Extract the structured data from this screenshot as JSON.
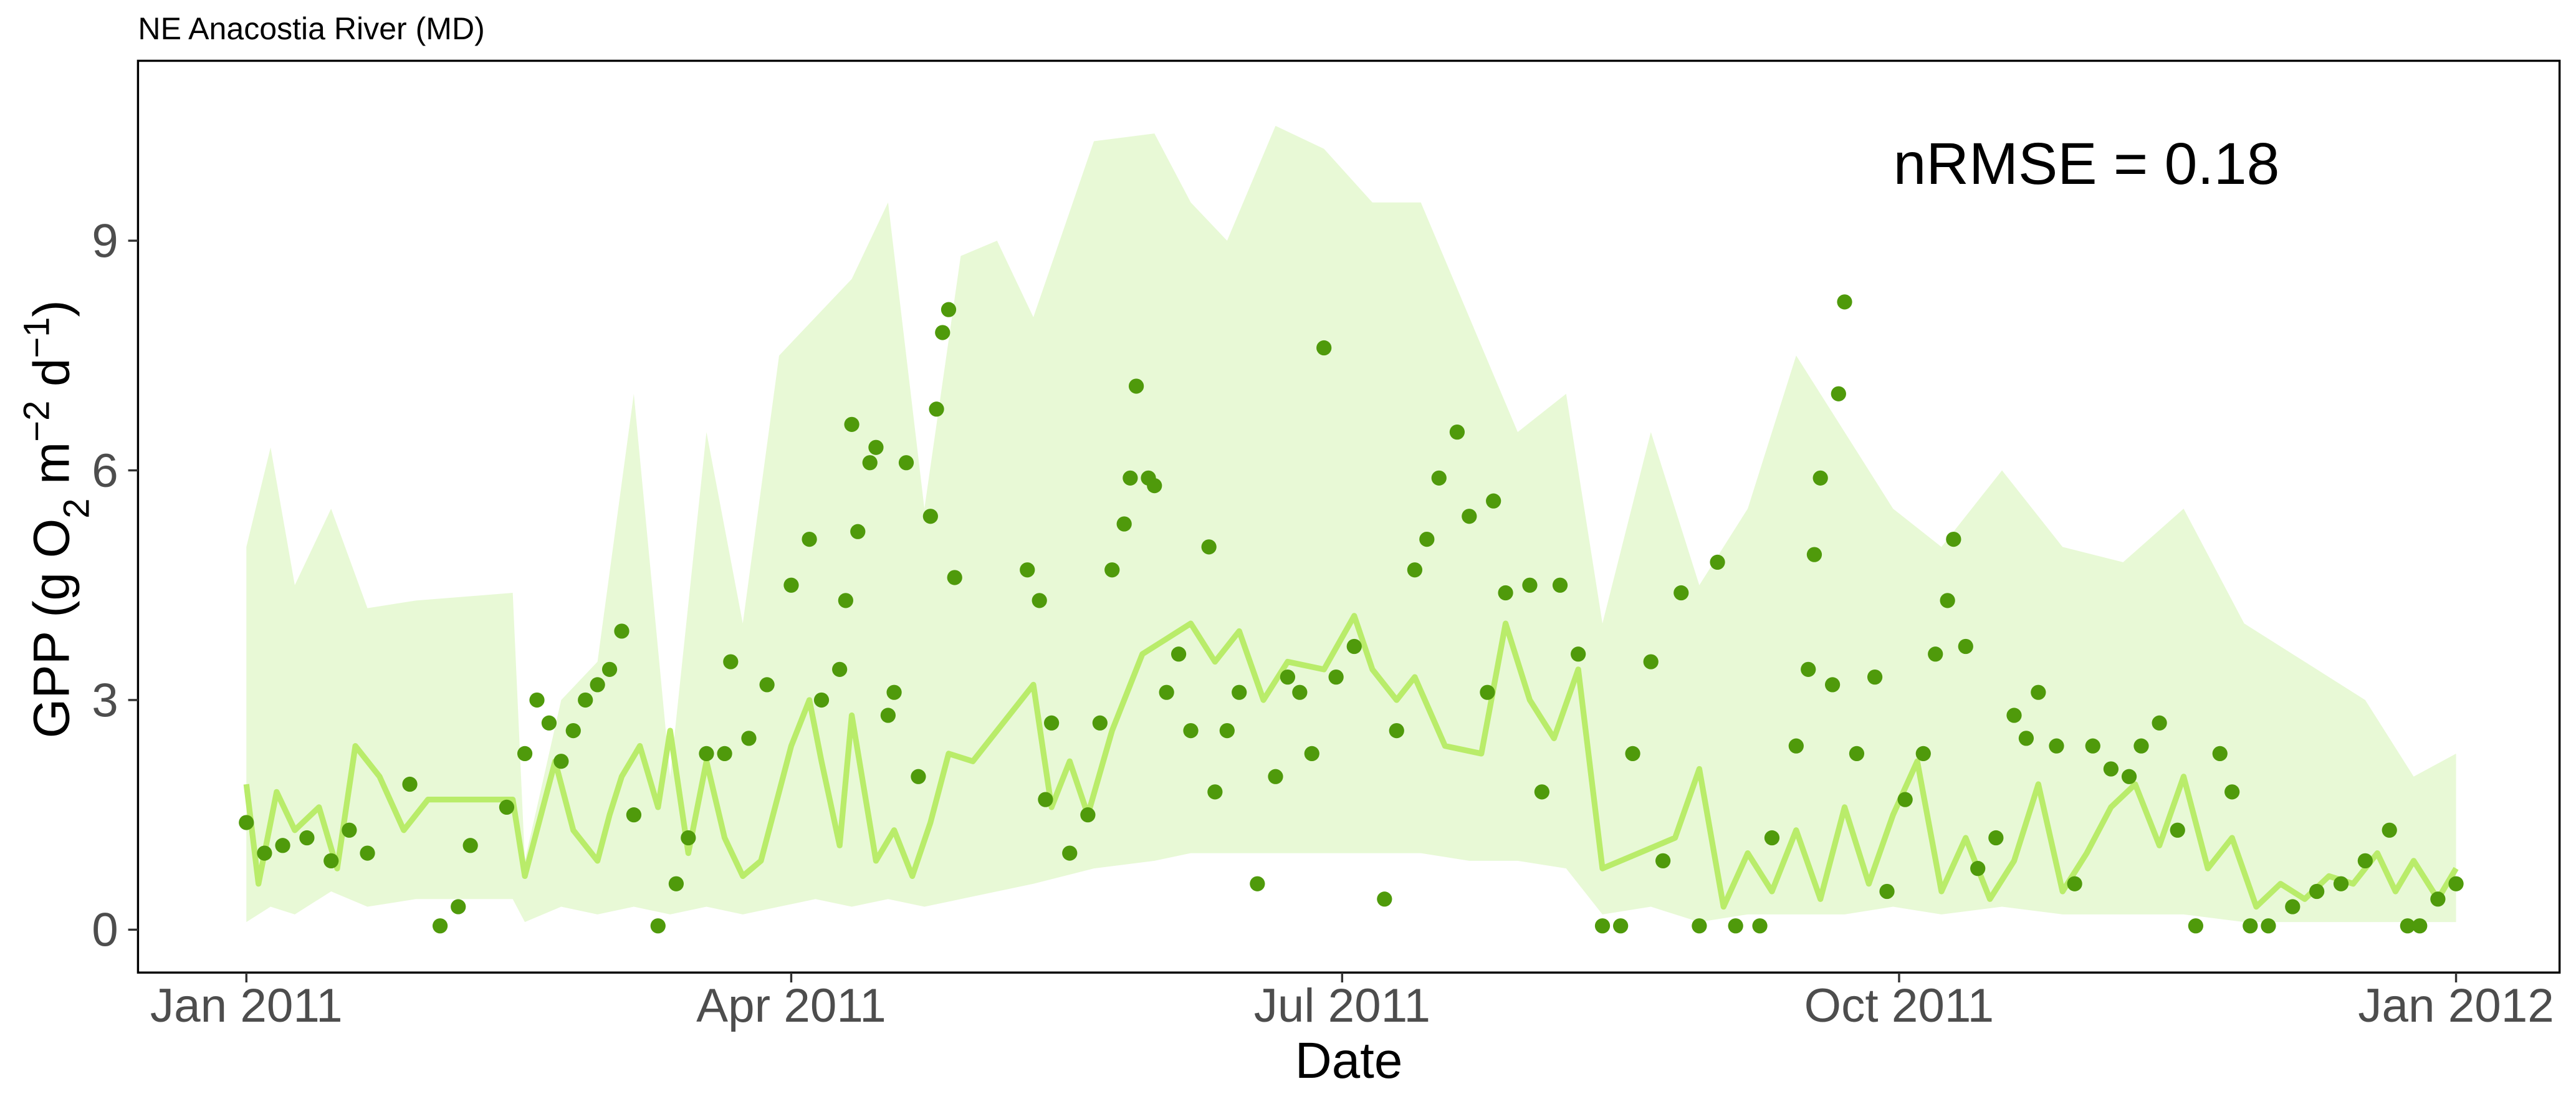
{
  "chart_data": {
    "type": "line",
    "title": "NE Anacostia River (MD)",
    "x_label": "Date",
    "y_label": [
      "GPP (g  O",
      "2",
      " m",
      "−2",
      " d",
      "−1",
      ")"
    ],
    "annotation": "nRMSE =  0.18",
    "xlim": [
      -17.9,
      382.1
    ],
    "xticks": [
      {
        "value": 0,
        "label": "Jan 2011"
      },
      {
        "value": 90,
        "label": "Apr 2011"
      },
      {
        "value": 181,
        "label": "Jul 2011"
      },
      {
        "value": 273,
        "label": "Oct 2011"
      },
      {
        "value": 365,
        "label": "Jan 2012"
      }
    ],
    "ylim": [
      -0.56,
      11.35
    ],
    "yticks": [
      0,
      3,
      6,
      9
    ],
    "grid": false,
    "series": [
      {
        "type": "band",
        "color": "#e8f9d6",
        "x": [
          0,
          4,
          8,
          14,
          20,
          28,
          44,
          46,
          52,
          58,
          64,
          70,
          76,
          82,
          88,
          94,
          100,
          106,
          112,
          118,
          124,
          130,
          140,
          150,
          156,
          162,
          170,
          178,
          186,
          194,
          202,
          210,
          218,
          224,
          232,
          240,
          248,
          256,
          264,
          272,
          280,
          290,
          300,
          310,
          320,
          330,
          340,
          350,
          358,
          365
        ],
        "upper": [
          5.0,
          6.3,
          4.5,
          5.5,
          4.2,
          4.3,
          4.4,
          0.9,
          3.0,
          3.5,
          7.0,
          2.0,
          6.5,
          4.0,
          7.5,
          8.0,
          8.5,
          9.5,
          5.5,
          8.8,
          9.0,
          8.0,
          10.3,
          10.4,
          9.5,
          9.0,
          10.5,
          10.2,
          9.5,
          9.5,
          8.0,
          6.5,
          7.0,
          4.0,
          6.5,
          4.5,
          5.5,
          7.5,
          6.5,
          5.5,
          5.0,
          6.0,
          5.0,
          4.8,
          5.5,
          4.0,
          3.5,
          3.0,
          2.0,
          2.3
        ],
        "lower": [
          0.1,
          0.3,
          0.2,
          0.5,
          0.3,
          0.4,
          0.4,
          0.1,
          0.3,
          0.2,
          0.3,
          0.2,
          0.3,
          0.2,
          0.3,
          0.4,
          0.3,
          0.4,
          0.3,
          0.4,
          0.5,
          0.6,
          0.8,
          0.9,
          1.0,
          1.0,
          1.0,
          1.0,
          1.0,
          1.0,
          0.9,
          0.9,
          0.8,
          0.2,
          0.3,
          0.1,
          0.2,
          0.2,
          0.2,
          0.3,
          0.2,
          0.3,
          0.2,
          0.2,
          0.2,
          0.1,
          0.1,
          0.1,
          0.1,
          0.1
        ]
      },
      {
        "type": "line",
        "color": "#b9ec6a",
        "x": [
          0,
          2,
          5,
          8,
          12,
          15,
          18,
          22,
          26,
          30,
          44,
          46,
          51,
          54,
          58,
          60,
          62,
          65,
          68,
          70,
          73,
          76,
          79,
          82,
          85,
          90,
          93,
          95,
          98,
          100,
          104,
          107,
          110,
          113,
          116,
          120,
          130,
          133,
          136,
          139,
          143,
          148,
          152,
          156,
          160,
          164,
          168,
          172,
          178,
          183,
          186,
          190,
          193,
          198,
          204,
          208,
          212,
          216,
          220,
          224,
          230,
          236,
          240,
          244,
          248,
          252,
          256,
          260,
          264,
          268,
          272,
          276,
          280,
          284,
          288,
          292,
          296,
          300,
          304,
          308,
          312,
          316,
          320,
          324,
          328,
          332,
          336,
          340,
          344,
          348,
          352,
          355,
          358,
          362,
          365
        ],
        "values": [
          1.9,
          0.6,
          1.8,
          1.3,
          1.6,
          0.8,
          2.4,
          2.0,
          1.3,
          1.7,
          1.7,
          0.7,
          2.2,
          1.3,
          0.9,
          1.5,
          2.0,
          2.4,
          1.6,
          2.6,
          1.0,
          2.2,
          1.2,
          0.7,
          0.9,
          2.4,
          3.0,
          2.2,
          1.1,
          2.8,
          0.9,
          1.3,
          0.7,
          1.4,
          2.3,
          2.2,
          3.2,
          1.6,
          2.2,
          1.5,
          2.6,
          3.6,
          3.8,
          4.0,
          3.5,
          3.9,
          3.0,
          3.5,
          3.4,
          4.1,
          3.4,
          3.0,
          3.3,
          2.4,
          2.3,
          4.0,
          3.0,
          2.5,
          3.4,
          0.8,
          1.0,
          1.2,
          2.1,
          0.3,
          1.0,
          0.5,
          1.3,
          0.4,
          1.6,
          0.6,
          1.5,
          2.2,
          0.5,
          1.2,
          0.4,
          0.9,
          1.9,
          0.5,
          1.0,
          1.6,
          1.9,
          1.1,
          2.0,
          0.8,
          1.2,
          0.3,
          0.6,
          0.4,
          0.7,
          0.6,
          1.0,
          0.5,
          0.9,
          0.4,
          0.8
        ]
      },
      {
        "type": "scatter",
        "color": "#4f9a0b",
        "x": [
          0,
          3,
          6,
          10,
          14,
          17,
          20,
          27,
          32,
          35,
          37,
          43,
          46,
          48,
          50,
          52,
          54,
          56,
          58,
          60,
          62,
          64,
          68,
          71,
          73,
          76,
          79,
          80,
          83,
          86,
          90,
          93,
          95,
          98,
          99,
          100,
          101,
          103,
          104,
          106,
          107,
          109,
          111,
          113,
          114,
          115,
          116,
          117,
          129,
          131,
          132,
          133,
          136,
          139,
          141,
          143,
          145,
          146,
          147,
          149,
          150,
          152,
          154,
          156,
          159,
          160,
          162,
          164,
          167,
          170,
          172,
          174,
          176,
          178,
          180,
          183,
          188,
          190,
          193,
          195,
          197,
          200,
          202,
          205,
          206,
          208,
          212,
          214,
          217,
          220,
          224,
          227,
          229,
          232,
          234,
          237,
          240,
          243,
          246,
          250,
          252,
          256,
          258,
          259,
          260,
          262,
          263,
          264,
          266,
          269,
          271,
          274,
          277,
          279,
          281,
          282,
          284,
          286,
          289,
          292,
          294,
          296,
          299,
          302,
          305,
          308,
          311,
          313,
          316,
          319,
          322,
          326,
          328,
          331,
          334,
          338,
          342,
          346,
          350,
          354,
          357,
          359,
          362,
          365
        ],
        "values": [
          1.4,
          1.0,
          1.1,
          1.2,
          0.9,
          1.3,
          1.0,
          1.9,
          0.05,
          0.3,
          1.1,
          1.6,
          2.3,
          3.0,
          2.7,
          2.2,
          2.6,
          3.0,
          3.2,
          3.4,
          3.9,
          1.5,
          0.05,
          0.6,
          1.2,
          2.3,
          2.3,
          3.5,
          2.5,
          3.2,
          4.5,
          5.1,
          3.0,
          3.4,
          4.3,
          6.6,
          5.2,
          6.1,
          6.3,
          2.8,
          3.1,
          6.1,
          2.0,
          5.4,
          6.8,
          7.8,
          8.1,
          4.6,
          4.7,
          4.3,
          1.7,
          2.7,
          1.0,
          1.5,
          2.7,
          4.7,
          5.3,
          5.9,
          7.1,
          5.9,
          5.8,
          3.1,
          3.6,
          2.6,
          5.0,
          1.8,
          2.6,
          3.1,
          0.6,
          2.0,
          3.3,
          3.1,
          2.3,
          7.6,
          3.3,
          3.7,
          0.4,
          2.6,
          4.7,
          5.1,
          5.9,
          6.5,
          5.4,
          3.1,
          5.6,
          4.4,
          4.5,
          1.8,
          4.5,
          3.6,
          0.05,
          0.05,
          2.3,
          3.5,
          0.9,
          4.4,
          0.05,
          4.8,
          0.05,
          0.05,
          1.2,
          2.4,
          3.4,
          4.9,
          5.9,
          3.2,
          7.0,
          8.2,
          2.3,
          3.3,
          0.5,
          1.7,
          2.3,
          3.6,
          4.3,
          5.1,
          3.7,
          0.8,
          1.2,
          2.8,
          2.5,
          3.1,
          2.4,
          0.6,
          2.4,
          2.1,
          2.0,
          2.4,
          2.7,
          1.3,
          0.05,
          2.3,
          1.8,
          0.05,
          0.05,
          0.3,
          0.5,
          0.6,
          0.9,
          1.3,
          0.05,
          0.05,
          0.4,
          0.6
        ]
      }
    ]
  }
}
